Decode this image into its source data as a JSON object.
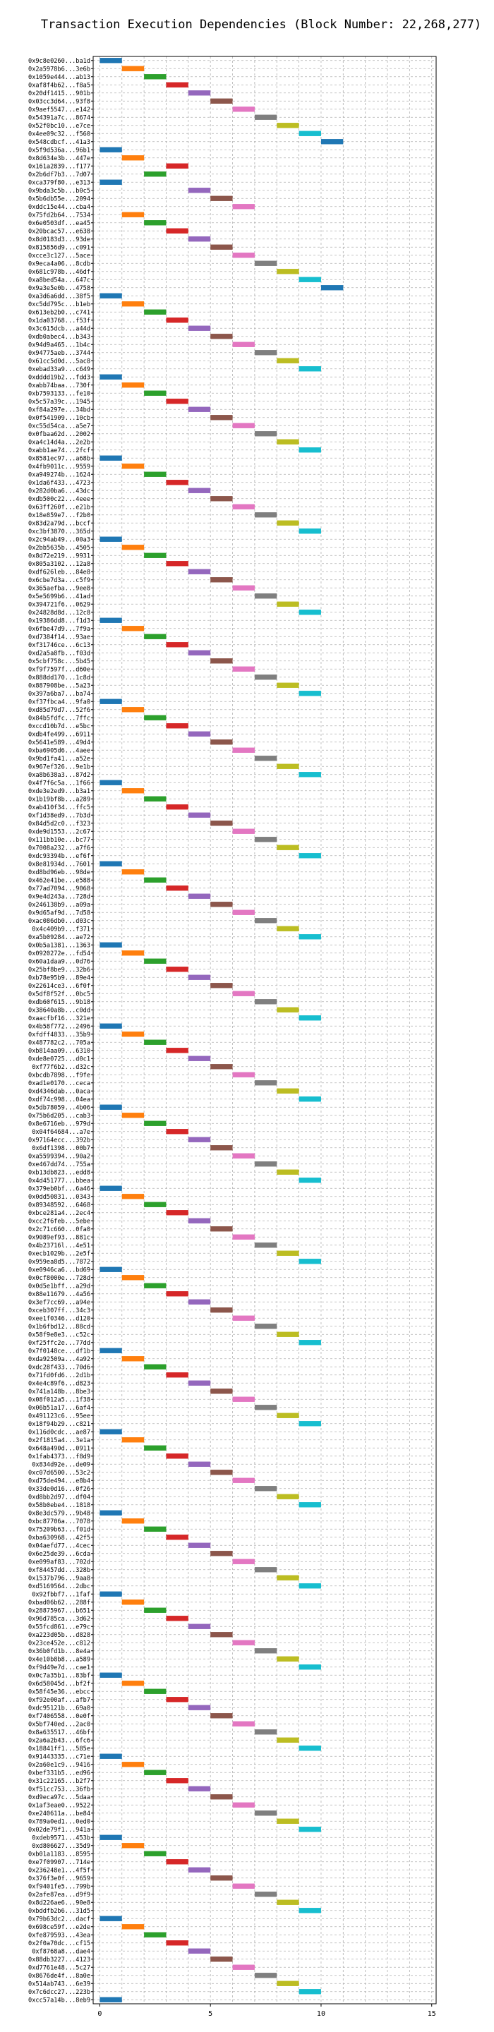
{
  "chart_data": {
    "type": "bar",
    "orientation": "horizontal-gantt",
    "title": "Transaction Execution Dependencies (Block Number: 22,268,277)",
    "xlabel": "",
    "ylabel": "",
    "xlim": [
      -0.3,
      15.2
    ],
    "xticks": [
      0,
      5,
      10,
      15
    ],
    "grid": true,
    "bar_width": 1,
    "palette": [
      "#1f77b4",
      "#ff7f0e",
      "#2ca02c",
      "#d62728",
      "#9467bd",
      "#8c564b",
      "#e377c2",
      "#7f7f7f",
      "#bcbd22",
      "#17becf"
    ],
    "transactions": [
      [
        "0x9c8e0260...ba1d",
        0
      ],
      [
        "0x2a5978b6...3e6b",
        1
      ],
      [
        "0x1059e444...ab13",
        2
      ],
      [
        "0xaf8f4b62...f8a5",
        3
      ],
      [
        "0x20df1415...901b",
        4
      ],
      [
        "0x03cc3d64...93f8",
        5
      ],
      [
        "0x9aef5547...e142",
        6
      ],
      [
        "0x54391a7c...8674",
        7
      ],
      [
        "0x52f0bc10...e7ce",
        8
      ],
      [
        "0x4ee09c32...f560",
        9
      ],
      [
        "0x548cdbcf...41a3",
        10
      ],
      [
        "0x5f9d536a...96b1",
        0
      ],
      [
        "0x8d634e3b...447e",
        1
      ],
      [
        "0x161a2839...f177",
        3
      ],
      [
        "0x2b6df7b3...7d07",
        2
      ],
      [
        "0xca379f80...e313",
        0
      ],
      [
        "0x9bda3c5b...b0c5",
        4
      ],
      [
        "0x5b6db55e...2094",
        5
      ],
      [
        "0xddc15e44...cba4",
        6
      ],
      [
        "0x75fd2b64...7534",
        1
      ],
      [
        "0x6e0503df...ea45",
        2
      ],
      [
        "0x20bcac57...e638",
        3
      ],
      [
        "0x8d0183d3...93de",
        4
      ],
      [
        "0x815856d9...c091",
        5
      ],
      [
        "0xcce3c127...5ace",
        6
      ],
      [
        "0x9eca4a06...8cdb",
        7
      ],
      [
        "0x681c978b...46df",
        8
      ],
      [
        "0xa8bed54a...647c",
        9
      ],
      [
        "0x9a3e5e0b...4758",
        10
      ],
      [
        "0xa3d6a6dd...38f5",
        0
      ],
      [
        "0xc5dd795c...b1eb",
        1
      ],
      [
        "0x613eb2b0...c741",
        2
      ],
      [
        "0x1da03768...f53f",
        3
      ],
      [
        "0x3c615dcb...a44d",
        4
      ],
      [
        "0xdb0abec4...b343",
        5
      ],
      [
        "0x94d9a465...1b4c",
        6
      ],
      [
        "0x94775aeb...3744",
        7
      ],
      [
        "0x61cc5d0d...5ac8",
        8
      ],
      [
        "0xebad33a9...c649",
        9
      ],
      [
        "0xdddd19b2...fdd3",
        0
      ],
      [
        "0xabb74baa...730f",
        1
      ],
      [
        "0xb7593133...fe10",
        2
      ],
      [
        "0x5c57a39c...1945",
        3
      ],
      [
        "0xf84a297e...34bd",
        4
      ],
      [
        "0x0f541909...10cb",
        5
      ],
      [
        "0xc55d54ca...a5e7",
        6
      ],
      [
        "0x0fbaa62d...2002",
        7
      ],
      [
        "0xa4c14d4a...2e2b",
        8
      ],
      [
        "0xabb1ae74...2fcf",
        9
      ],
      [
        "0x8581ec97...a68b",
        0
      ],
      [
        "0x4fb9011c...9559",
        1
      ],
      [
        "0xa949274b...1624",
        2
      ],
      [
        "0x1da6f433...4723",
        3
      ],
      [
        "0x282d0ba6...43dc",
        4
      ],
      [
        "0xdb500c22...4eee",
        5
      ],
      [
        "0x63ff260f...e21b",
        6
      ],
      [
        "0x18e859e7...f2b0",
        7
      ],
      [
        "0x83d2a79d...bccf",
        8
      ],
      [
        "0xc3bf3870...365d",
        9
      ],
      [
        "0x2c94ab49...00a3",
        0
      ],
      [
        "0x2bb5635b...4505",
        1
      ],
      [
        "0x8d72e219...9931",
        2
      ],
      [
        "0x805a3102...12a8",
        3
      ],
      [
        "0xdf626leb...84e8",
        4
      ],
      [
        "0x6cbe7d3a...c5f9",
        5
      ],
      [
        "0x365aefba...9ee8",
        6
      ],
      [
        "0x5e5699b6...41ad",
        7
      ],
      [
        "0x394721f6...0629",
        8
      ],
      [
        "0x24828d8d...12c8",
        9
      ],
      [
        "0x19386dd8...f1d3",
        0
      ],
      [
        "0x6fbe47d9...7f9a",
        1
      ],
      [
        "0xd7384f14...93ae",
        2
      ],
      [
        "0xf31746ce...6c13",
        3
      ],
      [
        "0xd2a5a8fb...f03d",
        4
      ],
      [
        "0x5cbf758c...5b45",
        5
      ],
      [
        "0xf9f7597f...d60e",
        6
      ],
      [
        "0x888dd170...1c8d",
        7
      ],
      [
        "0x887908be...5a23",
        8
      ],
      [
        "0x397a6ba7...ba74",
        9
      ],
      [
        "0xf37fbca4...9fa0",
        0
      ],
      [
        "0xd85d79d7...52f6",
        1
      ],
      [
        "0x84b5fdfc...7ffc",
        2
      ],
      [
        "0xccd10b7d...e5bc",
        3
      ],
      [
        "0xdb4fe499...6911",
        4
      ],
      [
        "0x5641e589...49d4",
        5
      ],
      [
        "0xba6905d6...4aee",
        6
      ],
      [
        "0x9bd1fa41...a52e",
        7
      ],
      [
        "0x967ef326...9e1b",
        8
      ],
      [
        "0xa8b638a3...87d2",
        9
      ],
      [
        "0x4f7f6c5a...1f66",
        0
      ],
      [
        "0xde3e2ed9...b3a1",
        1
      ],
      [
        "0x1b19bf8b...a289",
        2
      ],
      [
        "0xab410f34...ffc5",
        3
      ],
      [
        "0xf1d38ed9...7b3d",
        4
      ],
      [
        "0x84d5d2c0...f323",
        5
      ],
      [
        "0xde9d1553...2c67",
        6
      ],
      [
        "0x111bb10e...bc77",
        7
      ],
      [
        "0x7008a232...a7f6",
        8
      ],
      [
        "0xdc93394b...ef6f",
        9
      ],
      [
        "0x8e81934d...7601",
        0
      ],
      [
        "0xd8bd96eb...98de",
        1
      ],
      [
        "0x462e41be...e588",
        2
      ],
      [
        "0x77ad7094...9068",
        3
      ],
      [
        "0x9e4d243a...728d",
        4
      ],
      [
        "0x246138b9...a09a",
        5
      ],
      [
        "0x9d65af9d...7d58",
        6
      ],
      [
        "0xac086db0...d03c",
        7
      ],
      [
        "0x4c409b9...f371",
        8
      ],
      [
        "0xa5b09284...ae72",
        9
      ],
      [
        "0x0b5a1381...1363",
        0
      ],
      [
        "0x0920272e...fd54",
        1
      ],
      [
        "0x60a1daa9...0d76",
        2
      ],
      [
        "0x25bf8be9...32b6",
        3
      ],
      [
        "0xb78e95b9...89e4",
        4
      ],
      [
        "0x22614ce3...6f0f",
        5
      ],
      [
        "0x5df8f52f...0bc5",
        6
      ],
      [
        "0xdb60f615...9b18",
        7
      ],
      [
        "0x38640a8b...c0dd",
        8
      ],
      [
        "0xaacfbf16...321e",
        9
      ],
      [
        "0x4b58f772...2496",
        0
      ],
      [
        "0xfdff4833...35b9",
        1
      ],
      [
        "0x487782c2...705a",
        2
      ],
      [
        "0xb814aa09...6310",
        3
      ],
      [
        "0xde8e0725...d0c1",
        4
      ],
      [
        "0xf77f6b2...d32c",
        5
      ],
      [
        "0xbcdb7898...f9fe",
        6
      ],
      [
        "0xad1e0170...ceca",
        7
      ],
      [
        "0xd4346dab...0aca",
        8
      ],
      [
        "0xdf74c998...04ea",
        9
      ],
      [
        "0x5db78059...4b06",
        0
      ],
      [
        "0x75b6d205...cab3",
        1
      ],
      [
        "0x8e6716eb...979d",
        2
      ],
      [
        "0x04f64684...a7e",
        3
      ],
      [
        "0x97164ecc...392b",
        4
      ],
      [
        "0x6df1398...00b7",
        5
      ],
      [
        "0xa5599394...90a2",
        6
      ],
      [
        "0xe467dd74...755a",
        7
      ],
      [
        "0xb13db823...edd8",
        8
      ],
      [
        "0x4d451777...bbea",
        9
      ],
      [
        "0x379eb0bf...6a46",
        0
      ],
      [
        "0x0dd50831...0343",
        1
      ],
      [
        "0x89348592...6468",
        2
      ],
      [
        "0xbce281a4...2ec4",
        3
      ],
      [
        "0xcc2f6feb...5ebe",
        4
      ],
      [
        "0x2c71c660...0fa0",
        5
      ],
      [
        "0x9089ef93...881c",
        6
      ],
      [
        "0x4b23716l...4e51",
        7
      ],
      [
        "0xecb1029b...2e5f",
        8
      ],
      [
        "0x959ea8d5...7872",
        9
      ],
      [
        "0xe0946ca6...bd69",
        0
      ],
      [
        "0x0cf8000e...728d",
        1
      ],
      [
        "0x0d5e1bff...a29d",
        2
      ],
      [
        "0x88e11679...4a56",
        3
      ],
      [
        "0x3ef7cc69...a94e",
        4
      ],
      [
        "0xceb307ff...34c3",
        5
      ],
      [
        "0xee1f0346...d120",
        6
      ],
      [
        "0x1b6fbd12...88cd",
        7
      ],
      [
        "0x58f9e8e3...c52c",
        8
      ],
      [
        "0xf25ffc2e...77dd",
        9
      ],
      [
        "0x7f0148ce...df1b",
        0
      ],
      [
        "0xda92509a...4a92",
        1
      ],
      [
        "0xdc28f433...70d6",
        2
      ],
      [
        "0x71fd0fd6...2d1b",
        3
      ],
      [
        "0x4e4c89f6...d823",
        4
      ],
      [
        "0x741a148b...8be3",
        5
      ],
      [
        "0x08f012a5...1f38",
        6
      ],
      [
        "0x06b51a17...6af4",
        7
      ],
      [
        "0x491123c6...95ee",
        8
      ],
      [
        "0x18f94b29...c821",
        9
      ],
      [
        "0x116d0cdc...ae87",
        0
      ],
      [
        "0x2f1815a4...3e1a",
        1
      ],
      [
        "0x648a490d...0911",
        2
      ],
      [
        "0x1fab4373...f8d9",
        3
      ],
      [
        "0x834d92e...de09",
        4
      ],
      [
        "0xc07d6500...53c2",
        5
      ],
      [
        "0xd75de494...e8b4",
        6
      ],
      [
        "0x33de0d16...0f26",
        7
      ],
      [
        "0xd8bb2d97...df04",
        8
      ],
      [
        "0x58b0ebe4...1818",
        9
      ],
      [
        "0x8e3dc579...9b48",
        0
      ],
      [
        "0xbc87706a...7078",
        1
      ],
      [
        "0x75209b63...f01d",
        2
      ],
      [
        "0xba630968...42f5",
        3
      ],
      [
        "0x04aefd77...4cec",
        4
      ],
      [
        "0x6e25de39...6cda",
        5
      ],
      [
        "0xe099af83...702d",
        6
      ],
      [
        "0xf84457dd...328b",
        7
      ],
      [
        "0x1537b796...9aa8",
        8
      ],
      [
        "0xd5169564...2dbc",
        9
      ],
      [
        "0x92fbbf7...1faf",
        0
      ],
      [
        "0xbad06b62...288f",
        1
      ],
      [
        "0x28875967...b651",
        2
      ],
      [
        "0x96d785ca...3d62",
        3
      ],
      [
        "0x55fcd861...e79c",
        4
      ],
      [
        "0xa223d05b...d828",
        5
      ],
      [
        "0x23ce452e...c812",
        6
      ],
      [
        "0x36b0fd1b...8e4a",
        7
      ],
      [
        "0x4e10b8b8...a589",
        8
      ],
      [
        "0xf9d49e7d...cae1",
        9
      ],
      [
        "0x0c7a35b1...83bf",
        0
      ],
      [
        "0x6d58045d...bf2f",
        1
      ],
      [
        "0x58f45e36...ebcc",
        2
      ],
      [
        "0xf92e00af...afb7",
        3
      ],
      [
        "0xdc95121b...69a0",
        4
      ],
      [
        "0xf7406558...0e0f",
        5
      ],
      [
        "0x5bf740ed...2ac0",
        6
      ],
      [
        "0x8a635517...46bf",
        7
      ],
      [
        "0x2a6a2b43...6fc6",
        8
      ],
      [
        "0x18841ff1...585e",
        9
      ],
      [
        "0x91443335...c71e",
        0
      ],
      [
        "0x2a60e1c9...9416",
        1
      ],
      [
        "0xbef331b5...ed96",
        2
      ],
      [
        "0x31c22165...b2f7",
        3
      ],
      [
        "0xf51cc753...36fb",
        4
      ],
      [
        "0xd9eca97c...5daa",
        5
      ],
      [
        "0x1af3eae0...9522",
        6
      ],
      [
        "0xe240611a...be84",
        7
      ],
      [
        "0x789a0ed1...0ed0",
        8
      ],
      [
        "0x02de79f1...941a",
        9
      ],
      [
        "0xdeb9571...453b",
        0
      ],
      [
        "0xd806627...35d9",
        1
      ],
      [
        "0xb01a1183...8595",
        2
      ],
      [
        "0xe7f09907...714e",
        3
      ],
      [
        "0x236248e1...4f5f",
        4
      ],
      [
        "0x376f3e0f...9659",
        5
      ],
      [
        "0xf9401fe5...799b",
        6
      ],
      [
        "0x2afe87ea...d9f9",
        7
      ],
      [
        "0x8d226ae6...90e8",
        8
      ],
      [
        "0xbddfb2b6...31d5",
        9
      ],
      [
        "0x79b63dc2...dacf",
        0
      ],
      [
        "0x698ce59f...e2de",
        1
      ],
      [
        "0xfe879593...43ea",
        2
      ],
      [
        "0x2f0a70dc...cf15",
        3
      ],
      [
        "0xf8768a8...dae4",
        4
      ],
      [
        "0x88db3227...4123",
        5
      ],
      [
        "0xd7761e48...5c27",
        6
      ],
      [
        "0x8676de4f...8a0e",
        7
      ],
      [
        "0x514ab743...6e39",
        8
      ],
      [
        "0x7c6dcc27...223b",
        9
      ],
      [
        "0xcc57a14b...8eb9",
        0
      ]
    ]
  }
}
